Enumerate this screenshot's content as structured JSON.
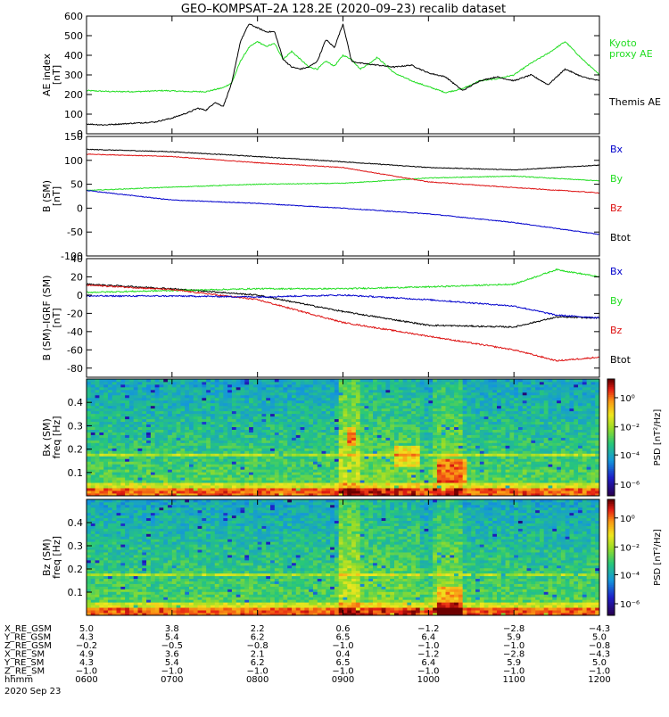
{
  "title": "GEO–KOMPSAT–2A 128.2E (2020–09–23) recalib dataset",
  "colors": {
    "black": "#000000",
    "green": "#22dd22",
    "red": "#dd1111",
    "blue": "#0000cc"
  },
  "time_ticks": [
    "0600",
    "0700",
    "0800",
    "0900",
    "1000",
    "1100",
    "1200"
  ],
  "chart_data": [
    {
      "type": "line",
      "id": "ae",
      "ylabel": "AE index\n[nT]",
      "ylim": [
        0,
        600
      ],
      "yticks": [
        0,
        100,
        200,
        300,
        400,
        500,
        600
      ],
      "xlim": [
        6,
        12
      ],
      "series": [
        {
          "name": "Kyoto proxy AE",
          "color": "green",
          "x": [
            6.0,
            6.3,
            6.6,
            6.9,
            7.2,
            7.4,
            7.6,
            7.7,
            7.8,
            7.9,
            8.0,
            8.1,
            8.2,
            8.3,
            8.4,
            8.6,
            8.7,
            8.8,
            8.9,
            9.0,
            9.1,
            9.2,
            9.3,
            9.4,
            9.6,
            9.8,
            10.0,
            10.2,
            10.4,
            10.6,
            10.8,
            11.0,
            11.2,
            11.4,
            11.6,
            11.8,
            12.0
          ],
          "y": [
            220,
            215,
            215,
            220,
            215,
            215,
            235,
            260,
            370,
            440,
            470,
            445,
            460,
            380,
            420,
            340,
            330,
            370,
            345,
            400,
            380,
            330,
            355,
            390,
            310,
            270,
            240,
            210,
            230,
            270,
            280,
            300,
            360,
            410,
            470,
            380,
            300
          ]
        },
        {
          "name": "Themis AE",
          "color": "black",
          "x": [
            6.0,
            6.2,
            6.4,
            6.6,
            6.8,
            7.0,
            7.2,
            7.3,
            7.4,
            7.5,
            7.6,
            7.7,
            7.8,
            7.9,
            8.0,
            8.1,
            8.2,
            8.3,
            8.4,
            8.5,
            8.6,
            8.7,
            8.8,
            8.9,
            9.0,
            9.1,
            9.2,
            9.4,
            9.6,
            9.8,
            10.0,
            10.2,
            10.4,
            10.6,
            10.8,
            11.0,
            11.2,
            11.4,
            11.6,
            11.8,
            12.0
          ],
          "y": [
            50,
            45,
            50,
            55,
            60,
            80,
            110,
            130,
            120,
            160,
            140,
            260,
            470,
            560,
            540,
            520,
            520,
            380,
            340,
            330,
            340,
            370,
            480,
            440,
            560,
            370,
            360,
            350,
            340,
            350,
            310,
            290,
            220,
            270,
            290,
            270,
            300,
            250,
            330,
            290,
            270
          ]
        }
      ],
      "labels": [
        "Kyoto\nproxy AE",
        "Themis AE"
      ]
    },
    {
      "type": "line",
      "id": "bsm",
      "ylabel": "B (SM)\n[nT]",
      "ylim": [
        -100,
        150
      ],
      "yticks": [
        -100,
        -50,
        0,
        50,
        100,
        150
      ],
      "xlim": [
        6,
        12
      ],
      "series": [
        {
          "name": "Btot",
          "color": "black",
          "x": [
            6,
            7,
            8,
            9,
            10,
            11,
            12
          ],
          "y": [
            123,
            118,
            108,
            97,
            85,
            80,
            90
          ]
        },
        {
          "name": "By",
          "color": "green",
          "x": [
            6,
            7,
            8,
            9,
            10,
            11,
            12
          ],
          "y": [
            37,
            44,
            50,
            52,
            63,
            67,
            57
          ]
        },
        {
          "name": "Bz",
          "color": "red",
          "x": [
            6,
            7,
            8,
            9,
            10,
            11,
            12
          ],
          "y": [
            113,
            108,
            95,
            85,
            55,
            43,
            32
          ]
        },
        {
          "name": "Bx",
          "color": "blue",
          "x": [
            6,
            7,
            8,
            9,
            10,
            11,
            12
          ],
          "y": [
            37,
            17,
            10,
            0,
            -12,
            -30,
            -55
          ]
        }
      ],
      "labels": [
        "Bx",
        "By",
        "Bz",
        "Btot"
      ]
    },
    {
      "type": "line",
      "id": "bigrf",
      "ylabel": "B (SM)–IGRF (SM)\n[nT]",
      "ylim": [
        -90,
        40
      ],
      "yticks": [
        -80,
        -60,
        -40,
        -20,
        0,
        20,
        40
      ],
      "xlim": [
        6,
        12
      ],
      "series": [
        {
          "name": "Btot",
          "color": "black",
          "x": [
            6,
            7,
            8,
            9,
            10,
            11,
            11.5,
            12
          ],
          "y": [
            12,
            7,
            0,
            -18,
            -33,
            -35,
            -24,
            -25
          ]
        },
        {
          "name": "By",
          "color": "green",
          "x": [
            6,
            7,
            8,
            9,
            10,
            11,
            11.5,
            12
          ],
          "y": [
            3,
            5,
            7,
            7,
            9,
            12,
            28,
            20
          ]
        },
        {
          "name": "Bz",
          "color": "red",
          "x": [
            6,
            7,
            8,
            9,
            10,
            11,
            11.5,
            12
          ],
          "y": [
            11,
            6,
            -5,
            -30,
            -45,
            -60,
            -72,
            -68
          ]
        },
        {
          "name": "Bx",
          "color": "blue",
          "x": [
            6,
            7,
            8,
            9,
            10,
            11,
            11.5,
            12
          ],
          "y": [
            -1,
            -1,
            -2,
            0,
            -5,
            -12,
            -22,
            -25
          ]
        }
      ],
      "labels": [
        "Bx",
        "By",
        "Bz",
        "Btot"
      ]
    },
    {
      "type": "heatmap",
      "id": "bxpsd",
      "ylabel": "Bx (SM)\nfreq [Hz]",
      "ylim": [
        0,
        0.5
      ],
      "yticks": [
        0.1,
        0.2,
        0.3,
        0.4
      ],
      "colorbar": {
        "label": "PSD [nT²/Hz]",
        "ticks": [
          "10⁰",
          "10⁻²",
          "10⁻⁴",
          "10⁻⁶"
        ]
      }
    },
    {
      "type": "heatmap",
      "id": "bzpsd",
      "ylabel": "Bz (SM)\nfreq [Hz]",
      "ylim": [
        0,
        0.5
      ],
      "yticks": [
        0.1,
        0.2,
        0.3,
        0.4
      ],
      "colorbar": {
        "label": "PSD [nT²/Hz]",
        "ticks": [
          "10⁰",
          "10⁻²",
          "10⁻⁴",
          "10⁻⁶"
        ]
      }
    }
  ],
  "ephemeris": {
    "rows": [
      {
        "label": "X_RE_GSM",
        "values": [
          "5.0",
          "3.8",
          "2.2",
          "0.6",
          "−1.2",
          "−2.8",
          "−4.3"
        ]
      },
      {
        "label": "Y_RE_GSM",
        "values": [
          "4.3",
          "5.4",
          "6.2",
          "6.5",
          "6.4",
          "5.9",
          "5.0"
        ]
      },
      {
        "label": "Z_RE_GSM",
        "values": [
          "−0.2",
          "−0.5",
          "−0.8",
          "−1.0",
          "−1.0",
          "−1.0",
          "−0.8"
        ]
      },
      {
        "label": "X_RE_SM",
        "values": [
          "4.9",
          "3.6",
          "2.1",
          "0.4",
          "−1.2",
          "−2.8",
          "−4.3"
        ]
      },
      {
        "label": "Y_RE_SM",
        "values": [
          "4.3",
          "5.4",
          "6.2",
          "6.5",
          "6.4",
          "5.9",
          "5.0"
        ]
      },
      {
        "label": "Z_RE_SM",
        "values": [
          "−1.0",
          "−1.0",
          "−1.0",
          "−1.0",
          "−1.0",
          "−1.0",
          "−1.0"
        ]
      },
      {
        "label": "hhmm",
        "values": [
          "0600",
          "0700",
          "0800",
          "0900",
          "1000",
          "1100",
          "1200"
        ]
      }
    ],
    "date": "2020 Sep 23"
  }
}
